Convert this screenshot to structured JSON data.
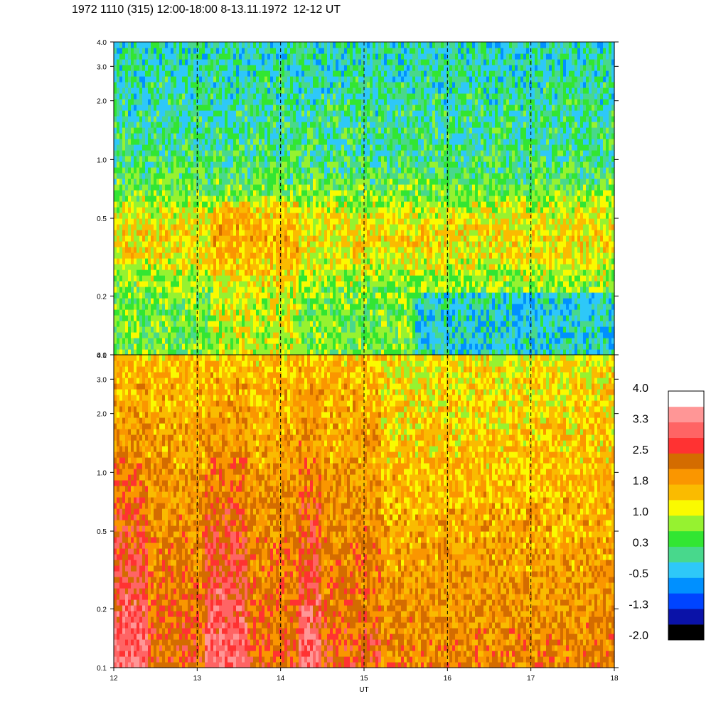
{
  "title": "1972 1110 (315) 12:00-18:00 8-13.11.1972  12-12 UT",
  "chart_data": [
    {
      "type": "heatmap",
      "panel": "top",
      "x_range": [
        12,
        18
      ],
      "y_scale": "log",
      "y_range": [
        0.1,
        4.0
      ],
      "y_ticks": [
        "0.1",
        "0.2",
        "0.5",
        "1.0",
        "2.0",
        "3.0",
        "4.0"
      ],
      "x_ticks": [
        "12",
        "13",
        "14",
        "15",
        "16",
        "17",
        "18"
      ],
      "dashed_lines_x": [
        13,
        14,
        15,
        16,
        17
      ],
      "dominant_levels": [
        "0.3",
        "-0.5",
        "1.0"
      ]
    },
    {
      "type": "heatmap",
      "panel": "bottom",
      "x_range": [
        12,
        18
      ],
      "y_scale": "log",
      "y_range": [
        0.1,
        4.0
      ],
      "y_ticks": [
        "0.1",
        "0.2",
        "0.5",
        "1.0",
        "2.0",
        "3.0",
        "4.0"
      ],
      "x_ticks": [
        "12",
        "13",
        "14",
        "15",
        "16",
        "17",
        "18"
      ],
      "x_label": "UT",
      "dashed_lines_x": [
        13,
        14,
        15,
        16,
        17
      ],
      "dominant_levels": [
        "1.8",
        "2.5",
        "1.0"
      ]
    }
  ],
  "colorbar": {
    "colors": [
      "#000000",
      "#0a12a8",
      "#0044ff",
      "#0090ff",
      "#2ec8f8",
      "#48d88c",
      "#32e632",
      "#96f230",
      "#fafa00",
      "#fabb00",
      "#fa9600",
      "#d46c00",
      "#ff3232",
      "#ff6464",
      "#ff9696",
      "#ffffff"
    ],
    "labels": [
      "-2.0",
      "-1.3",
      "-0.5",
      "0.3",
      "1.0",
      "1.8",
      "2.5",
      "3.3",
      "4.0"
    ]
  }
}
